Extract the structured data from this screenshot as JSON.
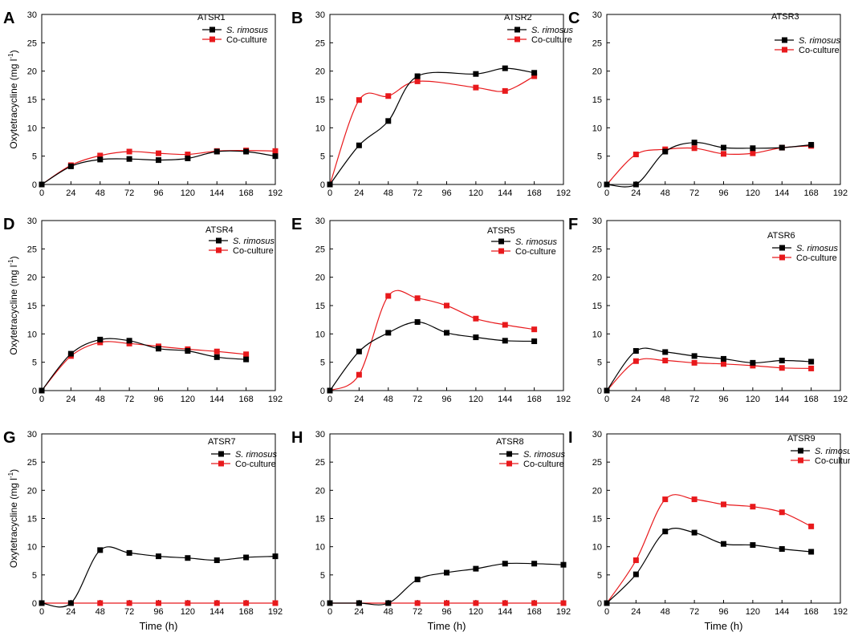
{
  "figure": {
    "y_axis_label_base": "Oxytetracycline (mg l",
    "y_axis_label_sup": "-1",
    "y_axis_label_end": ")",
    "x_axis_label": "Time (h)"
  },
  "chart_data": [
    {
      "type": "line",
      "panel_letter": "A",
      "title": "ATSR1",
      "xlabel": "",
      "ylabel": "Oxytetracycline (mg l-1)",
      "xlim": [
        0,
        192
      ],
      "ylim": [
        0,
        30
      ],
      "xticks": [
        0,
        24,
        48,
        72,
        96,
        120,
        144,
        168,
        192
      ],
      "yticks": [
        0,
        5,
        10,
        15,
        20,
        25,
        30
      ],
      "legend_position": "top-right",
      "series": [
        {
          "name": "S. rimosus",
          "italic": true,
          "color": "#000000",
          "x": [
            0,
            24,
            48,
            72,
            96,
            120,
            144,
            168,
            192
          ],
          "values": [
            0,
            3.2,
            4.4,
            4.5,
            4.3,
            4.6,
            5.8,
            5.8,
            5.0
          ]
        },
        {
          "name": "Co-culture",
          "italic": false,
          "color": "#e8191c",
          "x": [
            0,
            24,
            48,
            72,
            96,
            120,
            144,
            168,
            192
          ],
          "values": [
            0,
            3.4,
            5.1,
            5.8,
            5.5,
            5.3,
            5.9,
            6.0,
            5.9
          ]
        }
      ]
    },
    {
      "type": "line",
      "panel_letter": "B",
      "title": "ATSR2",
      "xlabel": "",
      "ylabel": "",
      "xlim": [
        0,
        192
      ],
      "ylim": [
        0,
        30
      ],
      "xticks": [
        0,
        24,
        48,
        72,
        96,
        120,
        144,
        168,
        192
      ],
      "yticks": [
        0,
        5,
        10,
        15,
        20,
        25,
        30
      ],
      "legend_position": "top-right",
      "series": [
        {
          "name": "S. rimosus",
          "italic": true,
          "color": "#000000",
          "x": [
            0,
            24,
            48,
            72,
            120,
            144,
            168
          ],
          "values": [
            0,
            6.9,
            11.2,
            19.1,
            19.5,
            20.5,
            19.7
          ]
        },
        {
          "name": "Co-culture",
          "italic": false,
          "color": "#e8191c",
          "x": [
            0,
            24,
            48,
            72,
            120,
            144,
            168
          ],
          "values": [
            0,
            14.9,
            15.6,
            18.2,
            17.1,
            16.5,
            19.1
          ]
        }
      ]
    },
    {
      "type": "line",
      "panel_letter": "C",
      "title": "ATSR3",
      "xlabel": "",
      "ylabel": "",
      "xlim": [
        0,
        192
      ],
      "ylim": [
        0,
        30
      ],
      "xticks": [
        0,
        24,
        48,
        72,
        96,
        120,
        144,
        168,
        192
      ],
      "yticks": [
        0,
        5,
        10,
        15,
        20,
        25,
        30
      ],
      "legend_position": "top-right",
      "series": [
        {
          "name": "S. rimosus",
          "italic": true,
          "color": "#000000",
          "x": [
            0,
            24,
            48,
            72,
            96,
            120,
            144,
            168
          ],
          "values": [
            0,
            0,
            5.8,
            7.4,
            6.5,
            6.4,
            6.5,
            7.0
          ]
        },
        {
          "name": "Co-culture",
          "italic": false,
          "color": "#e8191c",
          "x": [
            0,
            24,
            48,
            72,
            96,
            120,
            144,
            168
          ],
          "values": [
            0,
            5.3,
            6.2,
            6.4,
            5.4,
            5.5,
            6.5,
            6.8
          ]
        }
      ]
    },
    {
      "type": "line",
      "panel_letter": "D",
      "title": "ATSR4",
      "xlabel": "",
      "ylabel": "Oxytetracycline (mg l-1)",
      "xlim": [
        0,
        192
      ],
      "ylim": [
        0,
        30
      ],
      "xticks": [
        0,
        24,
        48,
        72,
        96,
        120,
        144,
        168,
        192
      ],
      "yticks": [
        0,
        5,
        10,
        15,
        20,
        25,
        30
      ],
      "legend_position": "top-right",
      "series": [
        {
          "name": "S. rimosus",
          "italic": true,
          "color": "#000000",
          "x": [
            0,
            24,
            48,
            72,
            96,
            120,
            144,
            168
          ],
          "values": [
            0,
            6.5,
            9.0,
            8.8,
            7.4,
            7.0,
            5.9,
            5.5
          ]
        },
        {
          "name": "Co-culture",
          "italic": false,
          "color": "#e8191c",
          "x": [
            0,
            24,
            48,
            72,
            96,
            120,
            144,
            168
          ],
          "values": [
            0,
            6.1,
            8.5,
            8.3,
            7.8,
            7.3,
            6.9,
            6.4
          ]
        }
      ]
    },
    {
      "type": "line",
      "panel_letter": "E",
      "title": "ATSR5",
      "xlabel": "",
      "ylabel": "",
      "xlim": [
        0,
        192
      ],
      "ylim": [
        0,
        30
      ],
      "xticks": [
        0,
        24,
        48,
        72,
        96,
        120,
        144,
        168,
        192
      ],
      "yticks": [
        0,
        5,
        10,
        15,
        20,
        25,
        30
      ],
      "legend_position": "top-right",
      "series": [
        {
          "name": "S. rimosus",
          "italic": true,
          "color": "#000000",
          "x": [
            0,
            24,
            48,
            72,
            96,
            120,
            144,
            168
          ],
          "values": [
            0,
            6.9,
            10.2,
            12.1,
            10.2,
            9.4,
            8.8,
            8.7
          ]
        },
        {
          "name": "Co-culture",
          "italic": false,
          "color": "#e8191c",
          "x": [
            0,
            24,
            48,
            72,
            96,
            120,
            144,
            168
          ],
          "values": [
            0,
            2.8,
            16.7,
            16.3,
            15.0,
            12.7,
            11.6,
            10.8
          ]
        }
      ]
    },
    {
      "type": "line",
      "panel_letter": "F",
      "title": "ATSR6",
      "xlabel": "",
      "ylabel": "",
      "xlim": [
        0,
        192
      ],
      "ylim": [
        0,
        30
      ],
      "xticks": [
        0,
        24,
        48,
        72,
        96,
        120,
        144,
        168,
        192
      ],
      "yticks": [
        0,
        5,
        10,
        15,
        20,
        25,
        30
      ],
      "legend_position": "top-right",
      "series": [
        {
          "name": "S. rimosus",
          "italic": true,
          "color": "#000000",
          "x": [
            0,
            24,
            48,
            72,
            96,
            120,
            144,
            168
          ],
          "values": [
            0,
            7.0,
            6.8,
            6.1,
            5.6,
            4.9,
            5.3,
            5.1
          ]
        },
        {
          "name": "Co-culture",
          "italic": false,
          "color": "#e8191c",
          "x": [
            0,
            24,
            48,
            72,
            96,
            120,
            144,
            168
          ],
          "values": [
            0,
            5.2,
            5.3,
            4.9,
            4.7,
            4.4,
            4.0,
            3.9
          ]
        }
      ]
    },
    {
      "type": "line",
      "panel_letter": "G",
      "title": "ATSR7",
      "xlabel": "Time (h)",
      "ylabel": "Oxytetracycline (mg l-1)",
      "xlim": [
        0,
        192
      ],
      "ylim": [
        0,
        30
      ],
      "xticks": [
        0,
        24,
        48,
        72,
        96,
        120,
        144,
        168,
        192
      ],
      "yticks": [
        0,
        5,
        10,
        15,
        20,
        25,
        30
      ],
      "legend_position": "top-right",
      "series": [
        {
          "name": "S. rimosus",
          "italic": true,
          "color": "#000000",
          "x": [
            0,
            24,
            48,
            72,
            96,
            120,
            144,
            168,
            192
          ],
          "values": [
            0,
            0,
            9.4,
            8.9,
            8.3,
            8.0,
            7.6,
            8.1,
            8.3
          ]
        },
        {
          "name": "Co-culture",
          "italic": false,
          "color": "#e8191c",
          "x": [
            0,
            24,
            48,
            72,
            96,
            120,
            144,
            168,
            192
          ],
          "values": [
            0,
            0,
            0,
            0,
            0,
            0,
            0,
            0,
            0
          ]
        }
      ]
    },
    {
      "type": "line",
      "panel_letter": "H",
      "title": "ATSR8",
      "xlabel": "Time (h)",
      "ylabel": "",
      "xlim": [
        0,
        192
      ],
      "ylim": [
        0,
        30
      ],
      "xticks": [
        0,
        24,
        48,
        72,
        96,
        120,
        144,
        168,
        192
      ],
      "yticks": [
        0,
        5,
        10,
        15,
        20,
        25,
        30
      ],
      "legend_position": "top-right",
      "series": [
        {
          "name": "S. rimosus",
          "italic": true,
          "color": "#000000",
          "x": [
            0,
            24,
            48,
            72,
            96,
            120,
            144,
            168,
            192
          ],
          "values": [
            0,
            0,
            0,
            4.2,
            5.4,
            6.1,
            7.0,
            7.0,
            6.8
          ]
        },
        {
          "name": "Co-culture",
          "italic": false,
          "color": "#e8191c",
          "x": [
            0,
            24,
            48,
            72,
            96,
            120,
            144,
            168,
            192
          ],
          "values": [
            0,
            0,
            0,
            0,
            0,
            0,
            0,
            0,
            0
          ]
        }
      ]
    },
    {
      "type": "line",
      "panel_letter": "I",
      "title": "ATSR9",
      "xlabel": "Time (h)",
      "ylabel": "",
      "xlim": [
        0,
        192
      ],
      "ylim": [
        0,
        30
      ],
      "xticks": [
        0,
        24,
        48,
        72,
        96,
        120,
        144,
        168,
        192
      ],
      "yticks": [
        0,
        5,
        10,
        15,
        20,
        25,
        30
      ],
      "legend_position": "top-right",
      "series": [
        {
          "name": "S. rimosus",
          "italic": true,
          "color": "#000000",
          "x": [
            0,
            24,
            48,
            72,
            96,
            120,
            144,
            168
          ],
          "values": [
            0,
            5.1,
            12.7,
            12.5,
            10.5,
            10.3,
            9.6,
            9.1
          ]
        },
        {
          "name": "Co-culture",
          "italic": false,
          "color": "#e8191c",
          "x": [
            0,
            24,
            48,
            72,
            96,
            120,
            144,
            168
          ],
          "values": [
            0,
            7.6,
            18.4,
            18.4,
            17.5,
            17.1,
            16.1,
            13.6
          ]
        }
      ]
    }
  ]
}
